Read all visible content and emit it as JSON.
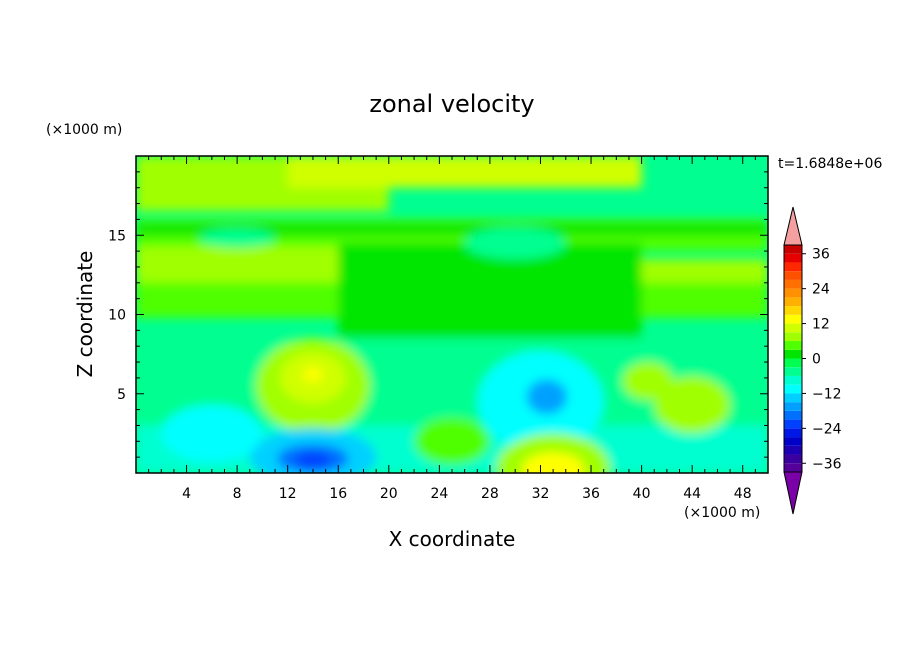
{
  "chart_data": {
    "type": "heatmap",
    "title": "zonal velocity",
    "xlabel": "X coordinate",
    "ylabel": "Z coordinate",
    "x_unit": "(×1000 m)",
    "y_unit": "(×1000 m)",
    "time_label": "t=1.6848e+06",
    "xlim": [
      0,
      50
    ],
    "ylim": [
      0,
      20
    ],
    "x_ticks": [
      4,
      8,
      12,
      16,
      20,
      24,
      28,
      32,
      36,
      40,
      44,
      48
    ],
    "y_ticks": [
      5,
      10,
      15
    ],
    "colorbar": {
      "levels": [
        -42,
        -39,
        -36,
        -33,
        -30,
        -27,
        -24,
        -21,
        -18,
        -15,
        -12,
        -9,
        -6,
        -3,
        0,
        3,
        6,
        9,
        12,
        15,
        18,
        21,
        24,
        27,
        30,
        33,
        36,
        39,
        42
      ],
      "tick_values": [
        36,
        24,
        12,
        0,
        -12,
        -24,
        -36
      ],
      "extend": "both",
      "colors": [
        "#7a00a8",
        "#55009b",
        "#3a00a0",
        "#1e00b4",
        "#0000c8",
        "#0018e6",
        "#0040ff",
        "#0070ff",
        "#00a0ff",
        "#00d0ff",
        "#00ffff",
        "#00ffd0",
        "#00ff90",
        "#00ff50",
        "#00e600",
        "#50ff00",
        "#a0ff00",
        "#d0ff00",
        "#ffff00",
        "#ffd800",
        "#ffb000",
        "#ff9000",
        "#ff7000",
        "#ff5000",
        "#ff2800",
        "#e60000",
        "#c80000",
        "#f4a0a0"
      ]
    },
    "value_range": [
      -27,
      15
    ],
    "field_description_features": [
      {
        "name": "weak negative core",
        "x": 14,
        "z": 0.8,
        "value": -24
      },
      {
        "name": "negative core",
        "x": 32.5,
        "z": 4.8,
        "value": -18
      },
      {
        "name": "positive core",
        "x": 33,
        "z": 0.4,
        "value": 15
      },
      {
        "name": "positive lobe",
        "x": 14,
        "z": 6,
        "value": 12
      },
      {
        "name": "positive band top",
        "x": 25,
        "z": 19,
        "value": 12
      },
      {
        "name": "positive band upper",
        "x": 10,
        "z": 13,
        "value": 9
      },
      {
        "name": "positive band right",
        "x": 44,
        "z": 11.5,
        "value": 9
      }
    ],
    "grid": false,
    "legend": "colorbar-right"
  }
}
